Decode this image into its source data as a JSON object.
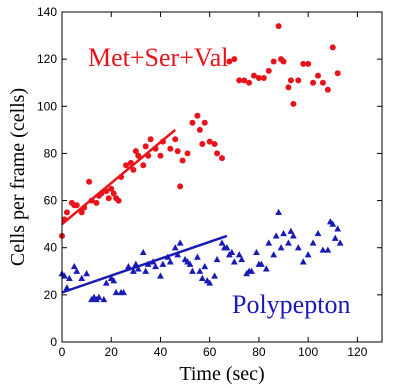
{
  "chart_data": {
    "type": "scatter",
    "xlabel": "Time (sec)",
    "ylabel": "Cells per frame (cells)",
    "xlim": [
      0,
      130
    ],
    "ylim": [
      0,
      140
    ],
    "xticks": [
      0,
      20,
      40,
      60,
      80,
      100,
      120
    ],
    "yticks": [
      0,
      20,
      40,
      60,
      80,
      100,
      120,
      140
    ],
    "grid": false,
    "series": [
      {
        "name": "Met+Ser+Val",
        "color": "#e8141b",
        "marker": "circle",
        "points": [
          [
            0,
            45
          ],
          [
            1,
            52
          ],
          [
            2,
            55
          ],
          [
            4,
            59
          ],
          [
            5,
            58
          ],
          [
            6,
            58
          ],
          [
            8,
            55
          ],
          [
            9,
            57
          ],
          [
            11,
            68
          ],
          [
            12,
            60
          ],
          [
            14,
            59
          ],
          [
            15,
            62
          ],
          [
            16,
            63
          ],
          [
            18,
            64
          ],
          [
            19,
            61
          ],
          [
            20,
            65
          ],
          [
            21,
            63
          ],
          [
            22,
            61
          ],
          [
            23,
            60
          ],
          [
            24,
            70
          ],
          [
            26,
            75
          ],
          [
            28,
            76
          ],
          [
            29,
            73
          ],
          [
            30,
            81
          ],
          [
            31,
            79
          ],
          [
            33,
            75
          ],
          [
            34,
            83
          ],
          [
            35,
            79
          ],
          [
            36,
            86
          ],
          [
            38,
            82
          ],
          [
            40,
            79
          ],
          [
            41,
            85
          ],
          [
            44,
            82
          ],
          [
            46,
            86
          ],
          [
            47,
            81
          ],
          [
            48,
            66
          ],
          [
            49,
            77
          ],
          [
            51,
            80
          ],
          [
            53,
            93
          ],
          [
            55,
            96
          ],
          [
            56,
            90
          ],
          [
            57,
            84
          ],
          [
            58,
            93
          ],
          [
            60,
            85
          ],
          [
            62,
            84
          ],
          [
            63,
            80
          ],
          [
            65,
            78
          ],
          [
            68,
            119
          ],
          [
            70,
            120
          ],
          [
            72,
            111
          ],
          [
            74,
            111
          ],
          [
            76,
            110
          ],
          [
            78,
            113
          ],
          [
            80,
            112
          ],
          [
            82,
            112
          ],
          [
            84,
            115
          ],
          [
            86,
            119
          ],
          [
            88,
            134
          ],
          [
            89,
            120
          ],
          [
            90,
            119
          ],
          [
            92,
            108
          ],
          [
            93,
            111
          ],
          [
            94,
            101
          ],
          [
            96,
            111
          ],
          [
            98,
            118
          ],
          [
            100,
            118
          ],
          [
            102,
            110
          ],
          [
            104,
            113
          ],
          [
            106,
            110
          ],
          [
            108,
            107
          ],
          [
            110,
            125
          ],
          [
            112,
            114
          ]
        ],
        "fit_line": [
          [
            0,
            50
          ],
          [
            46,
            90
          ]
        ]
      },
      {
        "name": "Polypepton",
        "color": "#1a1ab4",
        "marker": "triangle",
        "points": [
          [
            0,
            29
          ],
          [
            1,
            28
          ],
          [
            2,
            23
          ],
          [
            3,
            27
          ],
          [
            5,
            32
          ],
          [
            6,
            30
          ],
          [
            8,
            27
          ],
          [
            10,
            29
          ],
          [
            12,
            18
          ],
          [
            13,
            19
          ],
          [
            14,
            18
          ],
          [
            15,
            19
          ],
          [
            17,
            18
          ],
          [
            18,
            25
          ],
          [
            20,
            27
          ],
          [
            21,
            26
          ],
          [
            22,
            21
          ],
          [
            24,
            21
          ],
          [
            25,
            21
          ],
          [
            27,
            32
          ],
          [
            29,
            30
          ],
          [
            30,
            33
          ],
          [
            31,
            31
          ],
          [
            33,
            38
          ],
          [
            34,
            30
          ],
          [
            35,
            33
          ],
          [
            37,
            34
          ],
          [
            38,
            32
          ],
          [
            40,
            28
          ],
          [
            41,
            33
          ],
          [
            43,
            36
          ],
          [
            44,
            34
          ],
          [
            46,
            40
          ],
          [
            47,
            37
          ],
          [
            48,
            42
          ],
          [
            50,
            35
          ],
          [
            51,
            34
          ],
          [
            52,
            33
          ],
          [
            53,
            30
          ],
          [
            55,
            36
          ],
          [
            56,
            30
          ],
          [
            57,
            27
          ],
          [
            58,
            32
          ],
          [
            59,
            26
          ],
          [
            60,
            25
          ],
          [
            62,
            28
          ],
          [
            63,
            35
          ],
          [
            65,
            42
          ],
          [
            66,
            40
          ],
          [
            67,
            40
          ],
          [
            68,
            37
          ],
          [
            69,
            38
          ],
          [
            70,
            34
          ],
          [
            72,
            37
          ],
          [
            73,
            35
          ],
          [
            75,
            29
          ],
          [
            76,
            30
          ],
          [
            77,
            30
          ],
          [
            79,
            38
          ],
          [
            80,
            33
          ],
          [
            81,
            33
          ],
          [
            83,
            31
          ],
          [
            84,
            42
          ],
          [
            86,
            37
          ],
          [
            87,
            45
          ],
          [
            88,
            55
          ],
          [
            89,
            40
          ],
          [
            90,
            46
          ],
          [
            92,
            42
          ],
          [
            93,
            47
          ],
          [
            94,
            45
          ],
          [
            96,
            40
          ],
          [
            98,
            34
          ],
          [
            100,
            37
          ],
          [
            102,
            42
          ],
          [
            104,
            46
          ],
          [
            106,
            39
          ],
          [
            108,
            39
          ],
          [
            109,
            51
          ],
          [
            110,
            50
          ],
          [
            111,
            44
          ],
          [
            112,
            48
          ],
          [
            113,
            42
          ]
        ],
        "fit_line": [
          [
            0,
            21
          ],
          [
            67,
            45
          ]
        ]
      }
    ]
  }
}
